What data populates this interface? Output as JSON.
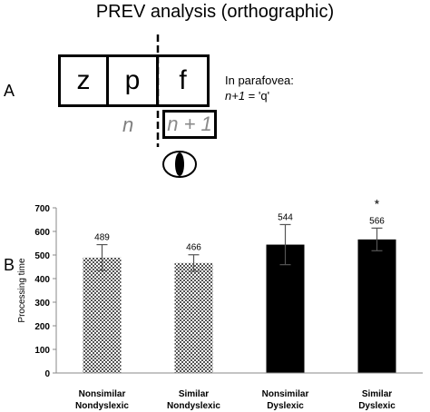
{
  "title": "PREV analysis (orthographic)",
  "panels": {
    "a": "A",
    "b": "B"
  },
  "letters": [
    "z",
    "p",
    "f"
  ],
  "positions": {
    "n": "n",
    "n_plus_1": "n + 1"
  },
  "parafovea": {
    "line1": "In parafovea:",
    "line2_italic": "n+1",
    "line2_rest": " = 'q'"
  },
  "colors": {
    "dyslexic": "#000000",
    "nondyslexic_pattern": "checkered",
    "n_label": "#7f7f7f"
  },
  "chart_data": {
    "type": "bar",
    "categories": [
      [
        "Nonsimilar",
        "Nondyslexic"
      ],
      [
        "Similar",
        "Nondyslexic"
      ],
      [
        "Nonsimilar",
        "Dyslexic"
      ],
      [
        "Similar",
        "Dyslexic"
      ]
    ],
    "values": [
      489,
      466,
      544,
      566
    ],
    "error": [
      55,
      35,
      85,
      48
    ],
    "fills": [
      "pattern",
      "pattern",
      "solid",
      "solid"
    ],
    "data_labels": [
      "489",
      "466",
      "544",
      "566"
    ],
    "ylabel": "Processing time",
    "ylim": [
      0,
      700
    ],
    "yticks": [
      "0",
      "100",
      "200",
      "300",
      "400",
      "500",
      "600",
      "700"
    ],
    "significance": [
      "",
      "",
      "",
      "*"
    ],
    "grid": false
  }
}
